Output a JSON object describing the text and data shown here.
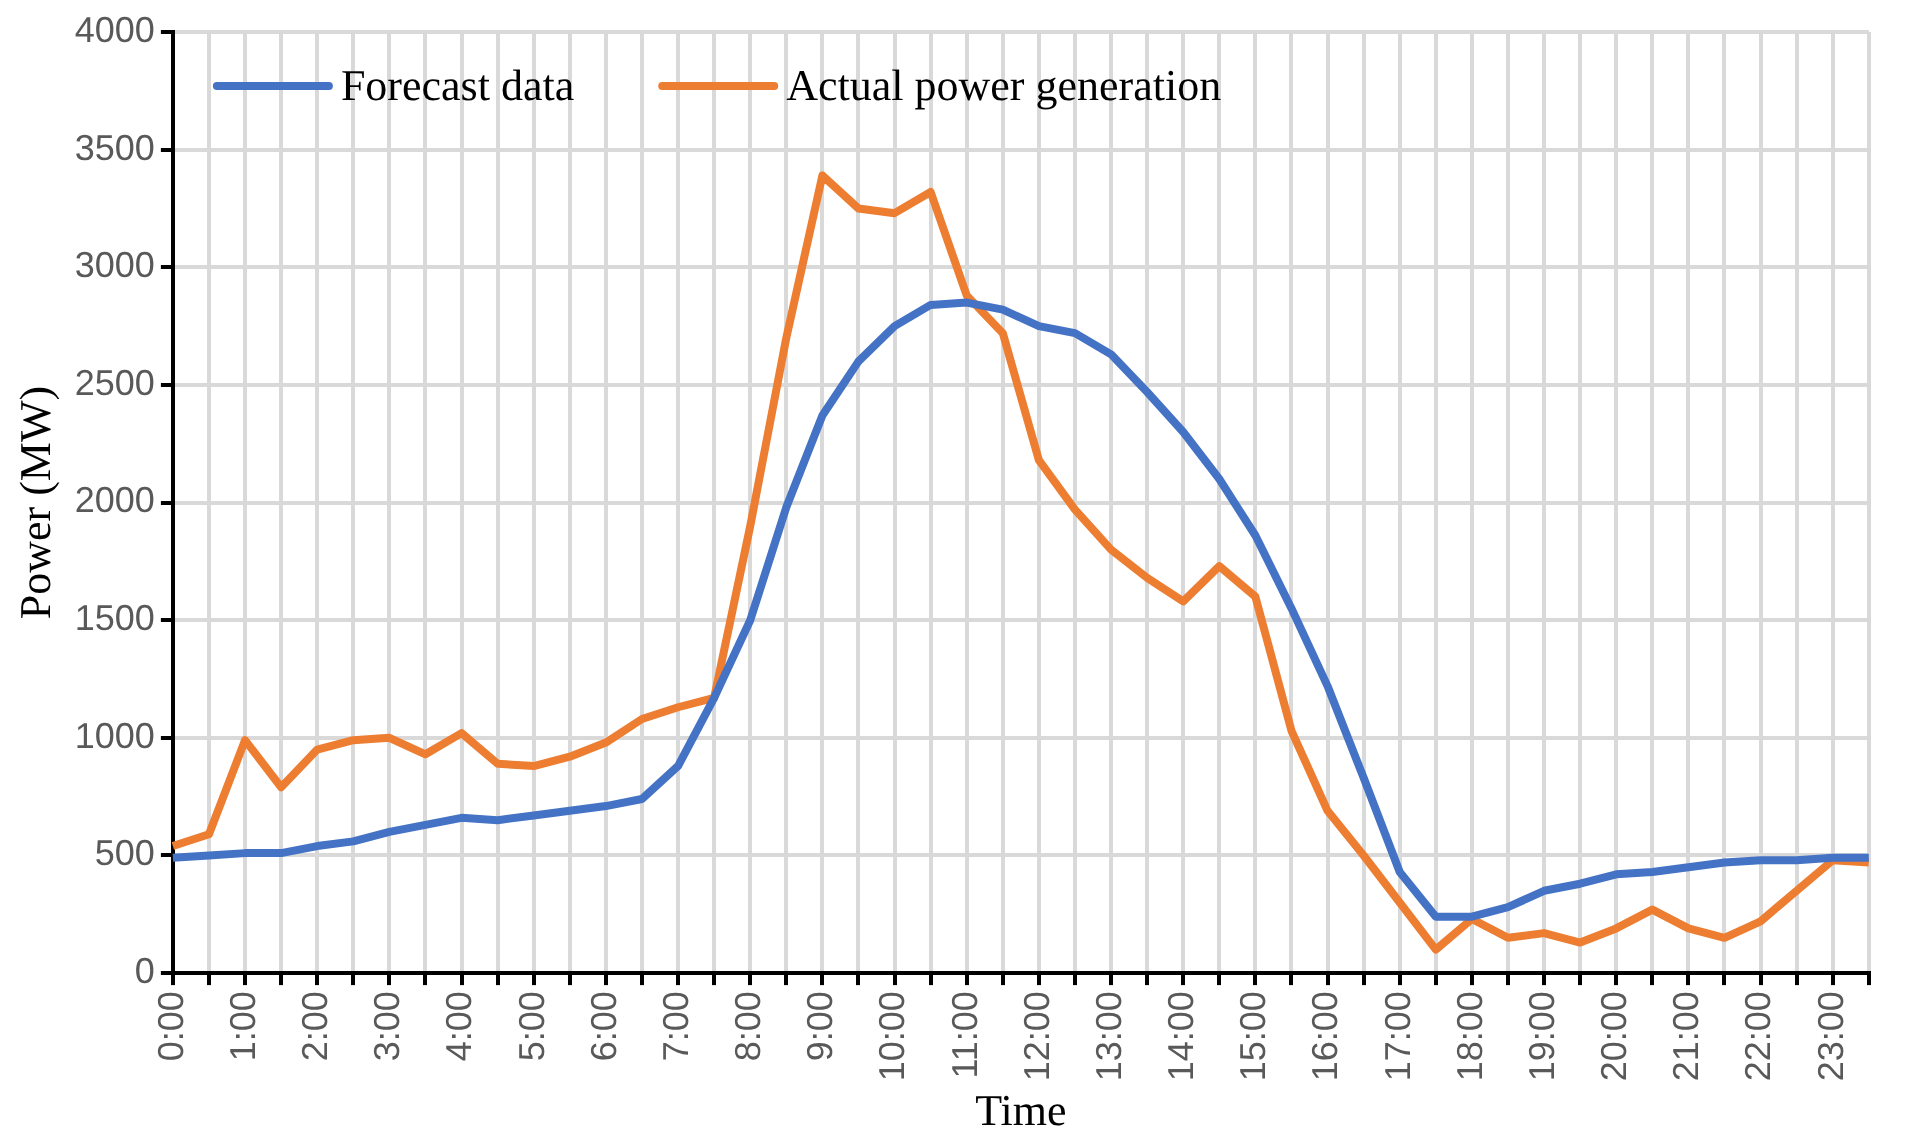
{
  "chart_data": {
    "type": "line",
    "xlabel": "Time",
    "ylabel": "Power (MW)",
    "categories": [
      "0:00",
      null,
      "1:00",
      null,
      "2:00",
      null,
      "3:00",
      null,
      "4:00",
      null,
      "5:00",
      null,
      "6:00",
      null,
      "7:00",
      null,
      "8:00",
      null,
      "9:00",
      null,
      "10:00",
      null,
      "11:00",
      null,
      "12:00",
      null,
      "13:00",
      null,
      "14:00",
      null,
      "15:00",
      null,
      "16:00",
      null,
      "17:00",
      null,
      "18:00",
      null,
      "19:00",
      null,
      "20:00",
      null,
      "21:00",
      null,
      "22:00",
      null,
      "23:00",
      null
    ],
    "series": [
      {
        "name": "Forecast data",
        "color": "#4472c4",
        "values": [
          490,
          500,
          510,
          510,
          540,
          560,
          600,
          630,
          660,
          650,
          670,
          690,
          710,
          740,
          880,
          1170,
          1500,
          1980,
          2370,
          2600,
          2750,
          2840,
          2850,
          2820,
          2750,
          2720,
          2630,
          2470,
          2300,
          2100,
          1860,
          1550,
          1220,
          830,
          430,
          240,
          240,
          280,
          350,
          380,
          420,
          430,
          450,
          470,
          480,
          480,
          490,
          490
        ]
      },
      {
        "name": "Actual power generation",
        "color": "#ed7d31",
        "values": [
          540,
          590,
          990,
          790,
          950,
          990,
          1000,
          930,
          1020,
          890,
          880,
          920,
          980,
          1080,
          1130,
          1170,
          1900,
          2700,
          3390,
          3250,
          3230,
          3320,
          2880,
          2720,
          2180,
          1970,
          1800,
          1680,
          1580,
          1730,
          1600,
          1030,
          690,
          500,
          300,
          100,
          230,
          150,
          170,
          130,
          190,
          270,
          190,
          150,
          220,
          350,
          480,
          470
        ]
      }
    ],
    "ylim": [
      0,
      4000
    ],
    "yticks": [
      0,
      500,
      1000,
      1500,
      2000,
      2500,
      3000,
      3500,
      4000
    ],
    "grid": true,
    "legend": "top left",
    "marker": "none",
    "line_style": "solid"
  }
}
